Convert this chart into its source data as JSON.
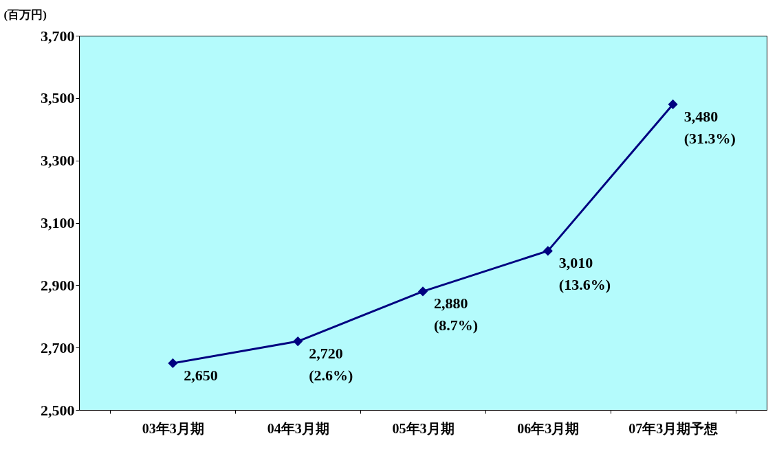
{
  "chart_data": {
    "type": "line",
    "ylabel": "(百万円)",
    "categories": [
      "03年3月期",
      "04年3月期",
      "05年3月期",
      "06年3月期",
      "07年3月期予想"
    ],
    "series": [
      {
        "color": "#000080",
        "values": [
          2650,
          2720,
          2880,
          3010,
          3480
        ],
        "value_labels": [
          "2,650",
          "2,720\n(2.6%)",
          "2,880\n(8.7%)",
          "3,010\n(13.6%)",
          "3,480\n(31.3%)"
        ]
      }
    ],
    "ylim": [
      2500,
      3700
    ],
    "yticks": [
      {
        "value": 2500,
        "label": "2,500"
      },
      {
        "value": 2700,
        "label": "2,700"
      },
      {
        "value": 2900,
        "label": "2,900"
      },
      {
        "value": 3100,
        "label": "3,100"
      },
      {
        "value": 3300,
        "label": "3,300"
      },
      {
        "value": 3500,
        "label": "3,500"
      },
      {
        "value": 3700,
        "label": "3,700"
      }
    ],
    "grid": false,
    "marker": "diamond",
    "line_style": "solid"
  }
}
